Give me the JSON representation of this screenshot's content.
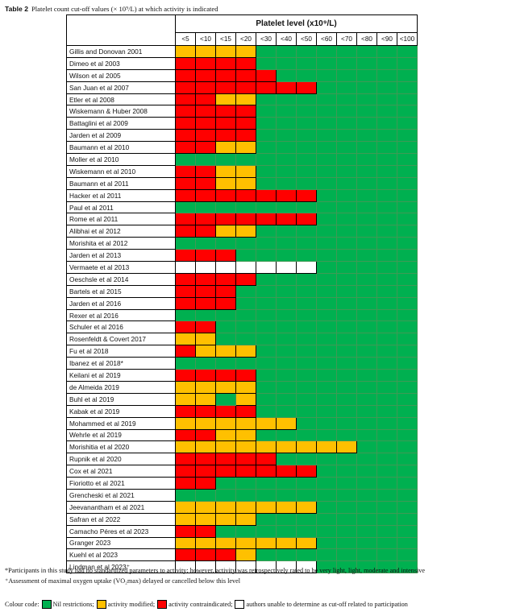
{
  "caption": {
    "label": "Table 2",
    "text": "Platelet count cut-off values (× 10⁹/L) at which activity is indicated"
  },
  "header": {
    "group_label": "Platelet level (x10⁹/L)",
    "bins": [
      "<5",
      "<10",
      "<15",
      "<20",
      "<30",
      "<40",
      "<50",
      "<60",
      "<70",
      "<80",
      "<90",
      "<100"
    ]
  },
  "colors": {
    "G": "#00b050",
    "Y": "#ffc000",
    "R": "#ff0000",
    "W": "#ffffff"
  },
  "rows": [
    {
      "study": "Gillis and Donovan 2001",
      "cells": "YYYYGGGGGGGG"
    },
    {
      "study": "Dimeo et al 2003",
      "cells": "RRRRGGGGGGGG"
    },
    {
      "study": "Wilson et al 2005",
      "cells": "RRRRRGGGGGGG"
    },
    {
      "study": "San Juan et al 2007",
      "cells": "RRRRRRRGGGGG"
    },
    {
      "study": "Etler et al 2008",
      "cells": "RRYYGGGGGGGG"
    },
    {
      "study": "Wiskemann & Huber 2008",
      "cells": "RRRRGGGGGGGG"
    },
    {
      "study": "Battaglini et al 2009",
      "cells": "RRRRGGGGGGGG"
    },
    {
      "study": "Jarden et al 2009",
      "cells": "RRRRGGGGGGGG"
    },
    {
      "study": "Baumann et al 2010",
      "cells": "RRYYGGGGGGGG"
    },
    {
      "study": "Moller et al 2010",
      "cells": "GGGGGGGGGGGG"
    },
    {
      "study": "Wiskemann et al 2010",
      "cells": "RRYYGGGGGGGG"
    },
    {
      "study": "Baumann et al 2011",
      "cells": "RRYYGGGGGGGG"
    },
    {
      "study": "Hacker et al 2011",
      "cells": "RRRRRRRGGGGG"
    },
    {
      "study": "Paul et al 2011",
      "cells": "GGGGGGGGGGGG"
    },
    {
      "study": "Rome et al 2011",
      "cells": "RRRRRRRGGGGG"
    },
    {
      "study": "Alibhai et al 2012",
      "cells": "RRYYGGGGGGGG"
    },
    {
      "study": "Morishita et al 2012",
      "cells": "GGGGGGGGGGGG"
    },
    {
      "study": "Jarden et al 2013",
      "cells": "RRRGGGGGGGGG"
    },
    {
      "study": "Vermaete et al 2013",
      "cells": "WWWWWWWGGGGG"
    },
    {
      "study": "Oeschsle et al 2014",
      "cells": "RRRRGGGGGGGG"
    },
    {
      "study": "Bartels et al 2015",
      "cells": "RRRGGGGGGGGG"
    },
    {
      "study": "Jarden et al 2016",
      "cells": "RRRGGGGGGGGG"
    },
    {
      "study": "Rexer et al 2016",
      "cells": "GGGGGGGGGGGG"
    },
    {
      "study": "Schuler et al 2016",
      "cells": "RRGGGGGGGGGG"
    },
    {
      "study": "Rosenfeldt & Covert 2017",
      "cells": "YYGGGGGGGGGG"
    },
    {
      "study": "Fu et al 2018",
      "cells": "RYYYGGGGGGGG"
    },
    {
      "study": "Ibanez et al 2018*",
      "cells": "GGGGGGGGGGGG"
    },
    {
      "study": "Keilani et al 2019",
      "cells": "RRRRGGGGGGGG"
    },
    {
      "study": "de Almeida 2019",
      "cells": "YYYYGGGGGGGG"
    },
    {
      "study": "Buhl et al 2019",
      "cells": "YYGYGGGGGGGG"
    },
    {
      "study": "Kabak et al 2019",
      "cells": "RRRRGGGGGGGG"
    },
    {
      "study": "Mohammed et al 2019",
      "cells": "YYYYYYGGGGGG"
    },
    {
      "study": "Wehrle et al 2019",
      "cells": "RRYYGGGGGGGG"
    },
    {
      "study": "Morishitia et al 2020",
      "cells": "YYYYYYYYYGGG"
    },
    {
      "study": "Rupnik et al 2020",
      "cells": "RRRRRGGGGGGG"
    },
    {
      "study": "Cox et al 2021",
      "cells": "RRRRRRRGGGGG"
    },
    {
      "study": "Fioriotto et al 2021",
      "cells": "RRGGGGGGGGGG"
    },
    {
      "study": "Grencheski et al 2021",
      "cells": "GGGGGGGGGGGG"
    },
    {
      "study": "Jeevanantham et al 2021",
      "cells": "YYYYYYYGGGGG"
    },
    {
      "study": "Safran et al 2022",
      "cells": "YYYYGGGGGGGG"
    },
    {
      "study": "Camacho Péres et al 2023",
      "cells": "RRGGGGGGGGGG"
    },
    {
      "study": "Granger 2023",
      "cells": "YYYYYYYGGGGG"
    },
    {
      "study": "Kuehl et al 2023",
      "cells": "RRRYGGGGGGGG"
    },
    {
      "study": "Lindman et al 2023⁺",
      "cells": "WWWWWWWGGGGG"
    }
  ],
  "footnotes": [
    "*Participants in this study had no standardized parameters to activity; however, activity was retrospectively rated to be very light, light, moderate and intensive",
    "⁺Assessment of maximal oxygen uptake (VO₂max) delayed or cancelled below this level"
  ],
  "legend": {
    "prefix": "Colour code:",
    "items": [
      {
        "code": "G",
        "label": "Nil restrictions;"
      },
      {
        "code": "Y",
        "label": "activity modified;"
      },
      {
        "code": "R",
        "label": "activity contraindicated;"
      },
      {
        "code": "W",
        "label": "authors unable to determine as cut-off related to participation"
      }
    ]
  }
}
